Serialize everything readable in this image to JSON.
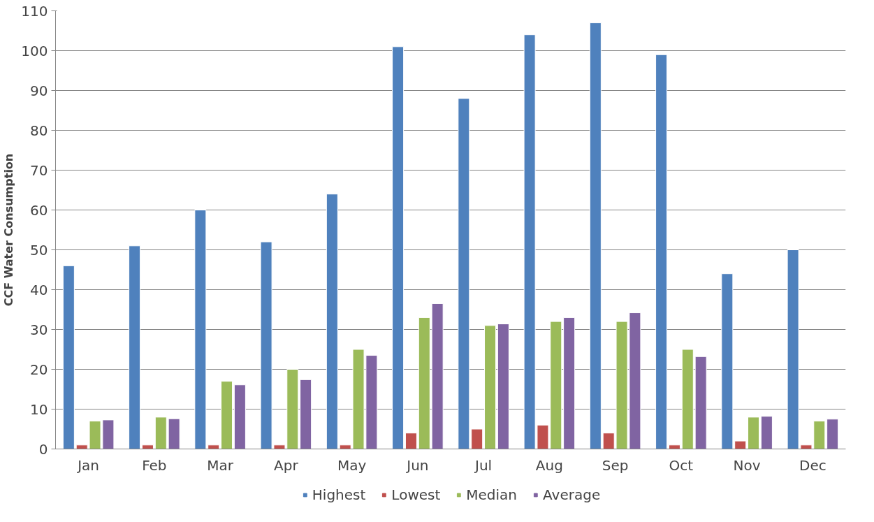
{
  "chart_data": {
    "type": "bar",
    "ylabel": "CCF Water Consumption",
    "categories": [
      "Jan",
      "Feb",
      "Mar",
      "Apr",
      "May",
      "Jun",
      "Jul",
      "Aug",
      "Sep",
      "Oct",
      "Nov",
      "Dec"
    ],
    "series": [
      {
        "name": "Highest",
        "color": "#4f81bd",
        "values": [
          46,
          51,
          60,
          52,
          64,
          101,
          88,
          104,
          107,
          99,
          44,
          50
        ]
      },
      {
        "name": "Lowest",
        "color": "#c0504d",
        "values": [
          1,
          1,
          1,
          1,
          1,
          4,
          5,
          6,
          4,
          1,
          2,
          1
        ]
      },
      {
        "name": "Median",
        "color": "#9bbb59",
        "values": [
          7,
          8,
          17,
          20,
          25,
          33,
          31,
          32,
          32,
          25,
          8,
          7
        ]
      },
      {
        "name": "Average",
        "color": "#8064a2",
        "values": [
          7.3,
          7.6,
          16.1,
          17.4,
          23.5,
          36.5,
          31.4,
          33,
          34.2,
          23.2,
          8.2,
          7.5
        ]
      }
    ],
    "ylim": [
      0,
      110
    ],
    "yticks": [
      0,
      10,
      20,
      30,
      40,
      50,
      60,
      70,
      80,
      90,
      100,
      110
    ],
    "grid": "y",
    "legend": "bottom"
  }
}
